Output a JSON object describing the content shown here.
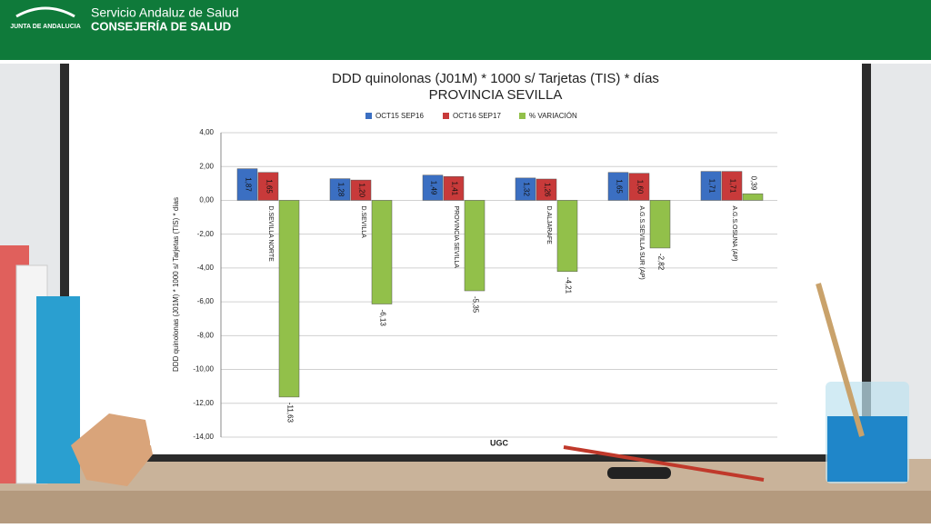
{
  "header": {
    "logo_text": "JUNTA DE ANDALUCIA",
    "service": "Servicio Andaluz de Salud",
    "department": "CONSEJERÍA DE SALUD"
  },
  "chart_data": {
    "type": "bar",
    "title": "DDD quinolonas (J01M) * 1000 s/ Tarjetas (TIS) * días",
    "subtitle": "PROVINCIA SEVILLA",
    "y_label": "DDD quinolonas (J01M) * 1000 s/ Tarjetas (TIS) * días",
    "x_label": "UGC",
    "categories": [
      "D.SEVILLA NORTE",
      "D.SEVILLA",
      "PROVINCIA SEVILLA",
      "D.ALJARAFE",
      "A.G.S.SEVILLA SUR (AP)",
      "A.G.S.OSUNA (AP)"
    ],
    "series": [
      {
        "name": "OCT15 SEP16",
        "color": "#3b6fc2",
        "values": [
          1.87,
          1.28,
          1.49,
          1.32,
          1.65,
          1.71
        ],
        "value_labels": [
          "1,87",
          "1,28",
          "1,49",
          "1,32",
          "1,65",
          "1,71"
        ]
      },
      {
        "name": "OCT16 SEP17",
        "color": "#c83a3a",
        "values": [
          1.65,
          1.2,
          1.41,
          1.26,
          1.6,
          1.71
        ],
        "value_labels": [
          "1,65",
          "1,20",
          "1,41",
          "1,26",
          "1,60",
          "1,71"
        ]
      },
      {
        "name": "% VARIACIÓN",
        "color": "#92c04a",
        "values": [
          -11.63,
          -6.13,
          -5.35,
          -4.21,
          -2.82,
          0.39
        ],
        "value_labels": [
          "-11,63",
          "-6,13",
          "-5,35",
          "-4,21",
          "-2,82",
          "0,39"
        ]
      }
    ],
    "ylim": [
      -14,
      4
    ],
    "yticks": [
      {
        "value": 4,
        "label": "4,00"
      },
      {
        "value": 2,
        "label": "2,00"
      },
      {
        "value": 0,
        "label": "0,00"
      },
      {
        "value": -2,
        "label": "-2,00"
      },
      {
        "value": -4,
        "label": "-4,00"
      },
      {
        "value": -6,
        "label": "-6,00"
      },
      {
        "value": -8,
        "label": "-8,00"
      },
      {
        "value": -10,
        "label": "-10,00"
      },
      {
        "value": -12,
        "label": "-12,00"
      },
      {
        "value": -14,
        "label": "-14,00"
      }
    ],
    "grid": true,
    "legend": "top"
  }
}
